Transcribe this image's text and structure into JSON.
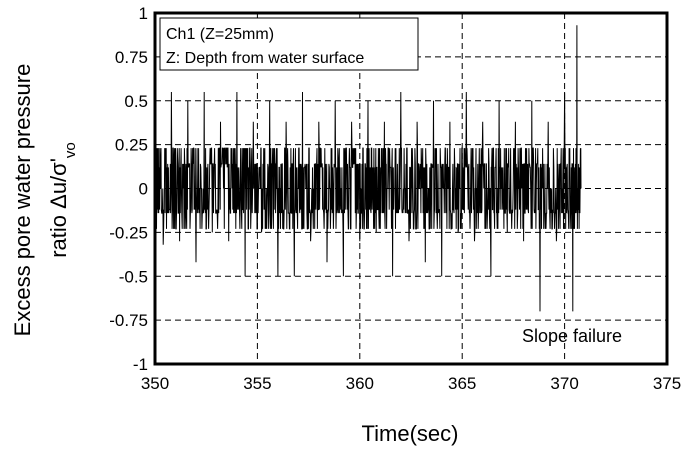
{
  "chart_data": {
    "type": "line",
    "title": "",
    "xlabel": "Time(sec)",
    "ylabel_line1": "Excess pore water pressure",
    "ylabel_line2_prefix": "ratio Δu/σ'",
    "ylabel_line2_subscript": "vo",
    "xlim": [
      350,
      375
    ],
    "ylim": [
      -1,
      1
    ],
    "x_ticks": [
      350,
      355,
      360,
      365,
      370,
      375
    ],
    "y_ticks": [
      1,
      0.75,
      0.5,
      0.25,
      0,
      -0.25,
      -0.5,
      -0.75,
      -1
    ],
    "x_tick_labels": [
      "350",
      "355",
      "360",
      "365",
      "370",
      "375"
    ],
    "y_tick_labels": [
      "1",
      "0.75",
      "0.5",
      "0.25",
      "0",
      "-0.25",
      "-0.5",
      "-0.75",
      "-1"
    ],
    "grid": true,
    "legend_placement": "top-left",
    "legend_lines": [
      "Ch1 (Z=25mm)",
      "Z: Depth from water surface"
    ],
    "annotation": "Slope failure",
    "series": [
      {
        "name": "Ch1 (Z=25mm)",
        "color": "#000000",
        "x": [
          350,
          350.4,
          350.8,
          351.2,
          351.6,
          352,
          352.4,
          352.8,
          353.2,
          353.6,
          354,
          354.4,
          354.8,
          355.2,
          355.6,
          356,
          356.4,
          356.8,
          357.2,
          357.6,
          358,
          358.4,
          358.8,
          359.2,
          359.6,
          360,
          360.4,
          360.8,
          361.2,
          361.6,
          362,
          362.4,
          362.8,
          363.2,
          363.6,
          364,
          364.4,
          364.8,
          365.2,
          365.6,
          366,
          366.4,
          366.8,
          367.2,
          367.6,
          368,
          368.4,
          368.8,
          369.2,
          369.6,
          370,
          370.4,
          370.6,
          370.8
        ],
        "y": [
          0.38,
          -0.32,
          0.55,
          -0.3,
          0.5,
          -0.42,
          0.55,
          -0.25,
          0.38,
          -0.3,
          0.55,
          -0.5,
          0.38,
          -0.25,
          0.5,
          -0.5,
          0.38,
          -0.5,
          0.55,
          -0.3,
          0.38,
          -0.42,
          0.5,
          -0.5,
          0.38,
          -0.3,
          0.5,
          -0.25,
          0.38,
          -0.5,
          0.55,
          -0.3,
          0.38,
          -0.42,
          0.5,
          -0.5,
          0.38,
          -0.25,
          0.55,
          -0.3,
          0.38,
          -0.5,
          0.5,
          -0.25,
          0.38,
          -0.3,
          0.5,
          -0.7,
          0.38,
          -0.3,
          0.55,
          -0.7,
          0.93,
          0
        ]
      }
    ]
  }
}
